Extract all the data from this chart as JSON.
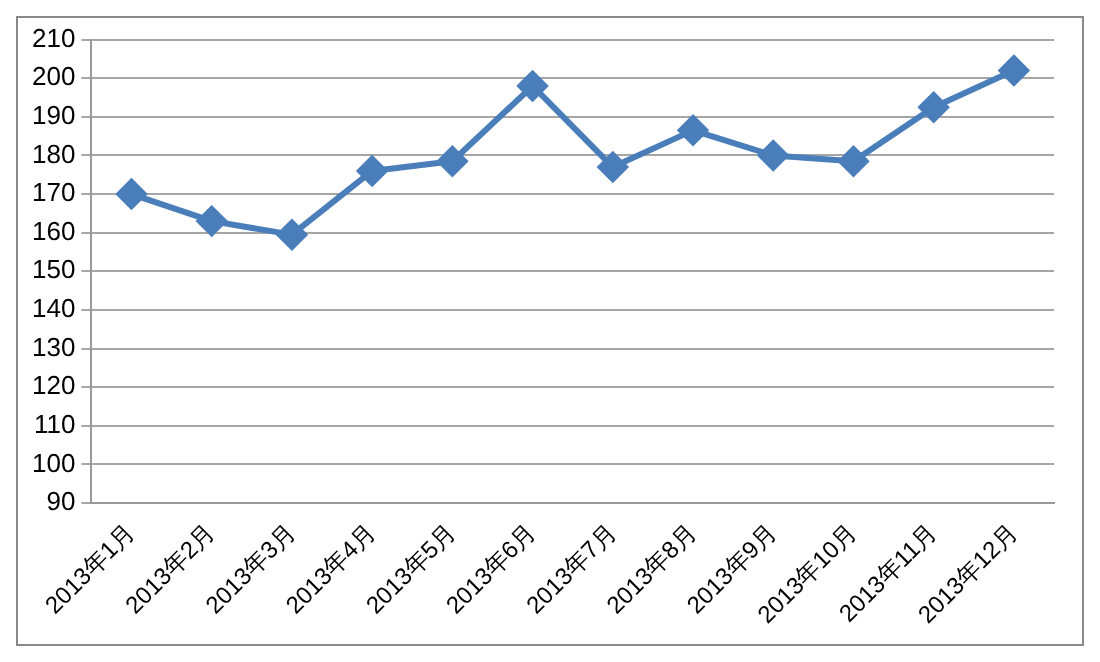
{
  "chart_data": {
    "type": "line",
    "categories": [
      "2013年1月",
      "2013年2月",
      "2013年3月",
      "2013年4月",
      "2013年5月",
      "2013年6月",
      "2013年7月",
      "2013年8月",
      "2013年9月",
      "2013年10月",
      "2013年11月",
      "2013年12月"
    ],
    "series": [
      {
        "color": "#4a7ebb",
        "values": [
          170,
          163,
          159.5,
          176,
          178.5,
          198,
          177,
          186.5,
          180,
          178.5,
          192.5,
          202
        ]
      }
    ],
    "ylim": [
      90,
      210
    ],
    "yticks": [
      90,
      100,
      110,
      120,
      130,
      140,
      150,
      160,
      170,
      180,
      190,
      200,
      210
    ],
    "grid": "y",
    "legend": false,
    "marker": "diamond",
    "line_style": "solid"
  }
}
